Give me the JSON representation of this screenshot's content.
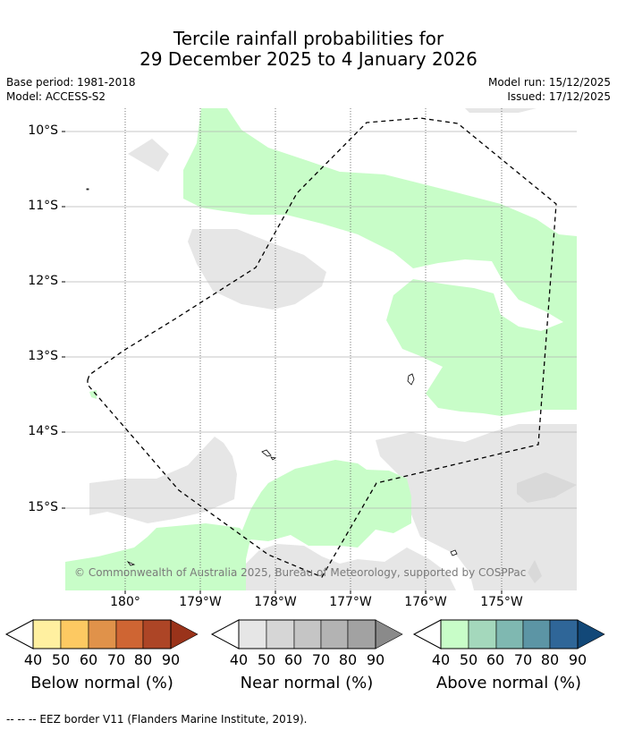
{
  "title_line1": "Tercile rainfall probabilities for",
  "title_line2": "29 December 2025 to 4 January 2026",
  "base_period": "Base period: 1981-2018",
  "model": "Model: ACCESS-S2",
  "model_run": "Model run: 15/12/2025",
  "issued": "Issued: 17/12/2025",
  "copyright": "© Commonwealth of Australia 2025, Bureau of Meteorology, supported by COSPPac",
  "lat_labels": [
    "10°S",
    "11°S",
    "12°S",
    "13°S",
    "14°S",
    "15°S"
  ],
  "lon_labels": [
    "180°",
    "179°W",
    "178°W",
    "177°W",
    "176°W",
    "175°W"
  ],
  "scales": [
    {
      "name": "below",
      "title": "Below normal (%)",
      "ticks": [
        "40",
        "50",
        "60",
        "70",
        "80",
        "90"
      ],
      "colors": [
        "#fff0a0",
        "#fdc962",
        "#e0924a",
        "#cf6533",
        "#ad4526",
        "#9a331a"
      ]
    },
    {
      "name": "near",
      "title": "Near normal (%)",
      "ticks": [
        "40",
        "50",
        "60",
        "70",
        "80",
        "90"
      ],
      "colors": [
        "#e6e6e6",
        "#d6d6d6",
        "#c5c5c5",
        "#b3b3b3",
        "#a2a2a2",
        "#8a8a8a"
      ]
    },
    {
      "name": "above",
      "title": "Above normal (%)",
      "ticks": [
        "40",
        "50",
        "60",
        "70",
        "80",
        "90"
      ],
      "colors": [
        "#c8fdc8",
        "#a4d8bc",
        "#7fb8b1",
        "#5c95a5",
        "#2f6698",
        "#124878"
      ]
    }
  ],
  "footer": "--  --  -- EEZ border V11 (Flanders Marine Institute, 2019).",
  "colors": {
    "near_normal": "#e6e6e6",
    "above_normal": "#c8fdc8"
  }
}
